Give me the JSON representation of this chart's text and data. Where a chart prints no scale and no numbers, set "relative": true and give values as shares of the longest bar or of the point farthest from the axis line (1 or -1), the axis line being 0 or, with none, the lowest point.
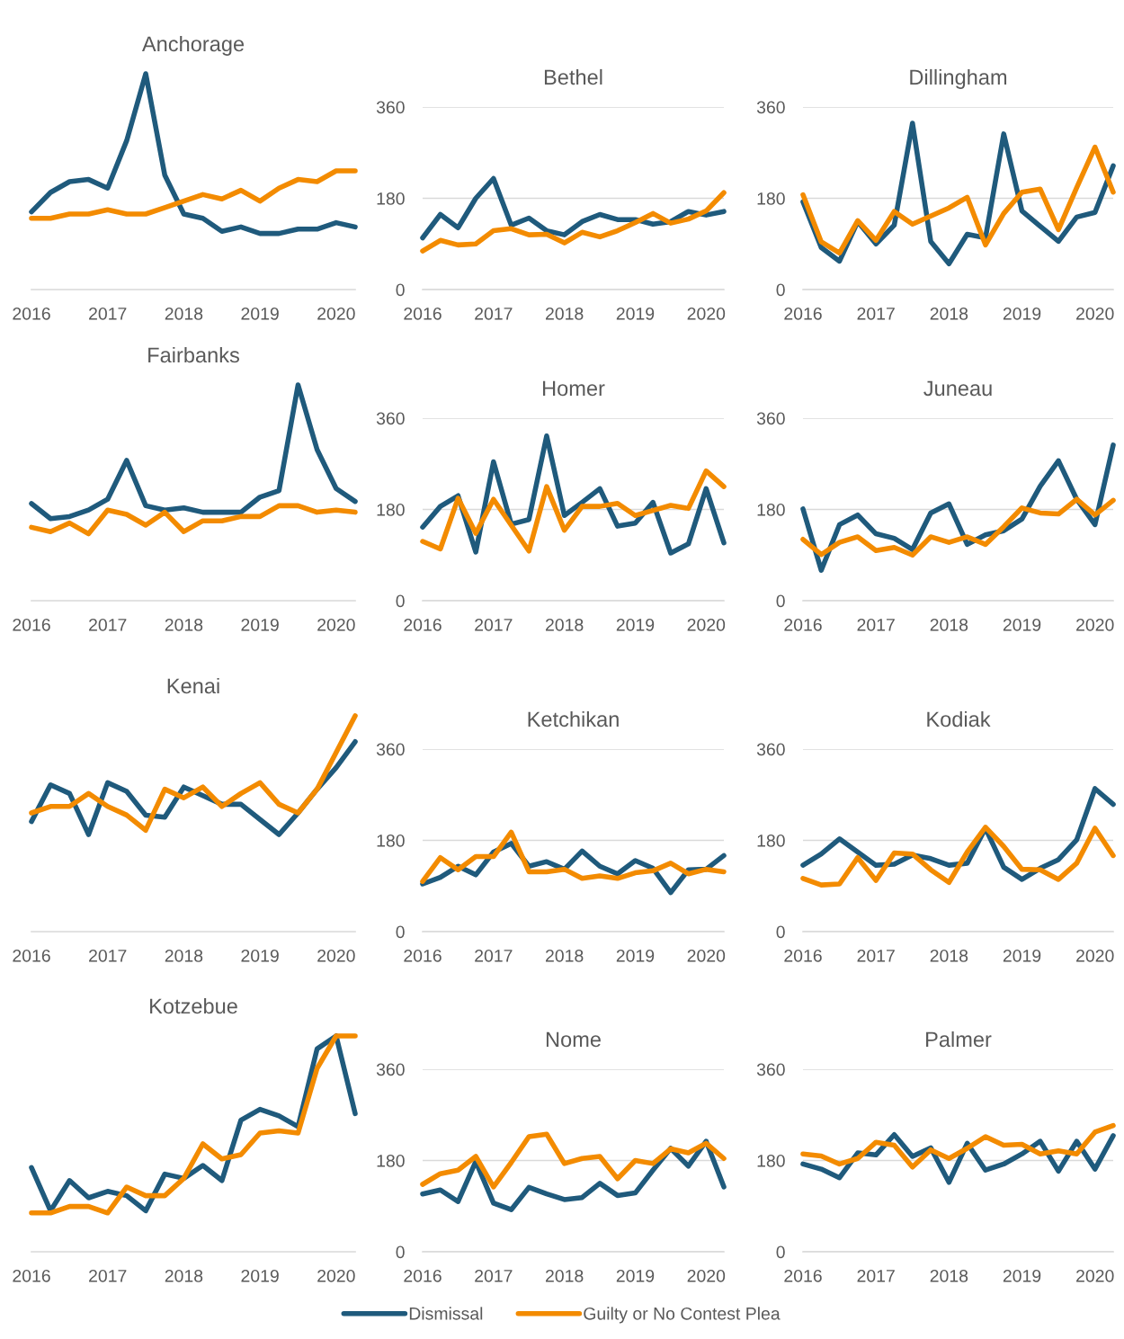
{
  "chart_data": [
    {
      "type": "line",
      "title": "Anchorage",
      "relative": true,
      "x": [
        2016,
        2016.25,
        2016.5,
        2016.75,
        2017,
        2017.25,
        2017.5,
        2017.75,
        2018,
        2018.25,
        2018.5,
        2018.75,
        2019,
        2019.25,
        2019.5,
        2019.75,
        2020,
        2020.25
      ],
      "xlim": [
        2016,
        2020.25
      ],
      "xticks": [
        2016,
        2017,
        2018,
        2019,
        2020
      ],
      "series": [
        {
          "color": "#1f5a7c",
          "values": [
            0.36,
            0.45,
            0.5,
            0.51,
            0.47,
            0.69,
            1,
            0.53,
            0.35,
            0.33,
            0.27,
            0.29,
            0.26,
            0.26,
            0.28,
            0.28,
            0.31,
            0.29
          ]
        },
        {
          "color": "#f38b00",
          "values": [
            0.33,
            0.33,
            0.35,
            0.35,
            0.37,
            0.35,
            0.35,
            0.38,
            0.41,
            0.44,
            0.42,
            0.46,
            0.41,
            0.47,
            0.51,
            0.5,
            0.55,
            0.55
          ]
        }
      ]
    },
    {
      "type": "line",
      "title": "Bethel",
      "x": [
        2016,
        2016.25,
        2016.5,
        2016.75,
        2017,
        2017.25,
        2017.5,
        2017.75,
        2018,
        2018.25,
        2018.5,
        2018.75,
        2019,
        2019.25,
        2019.5,
        2019.75,
        2020,
        2020.25
      ],
      "xlim": [
        2016,
        2020.25
      ],
      "xticks": [
        2016,
        2017,
        2018,
        2019,
        2020
      ],
      "ylim": [
        0,
        360
      ],
      "yticks": [
        0,
        180,
        360
      ],
      "grid": "y",
      "series": [
        {
          "color": "#1f5a7c",
          "values": [
            102,
            148,
            122,
            180,
            219,
            127,
            141,
            116,
            108,
            134,
            148,
            138,
            138,
            129,
            134,
            154,
            147,
            154
          ]
        },
        {
          "color": "#f38b00",
          "values": [
            76,
            97,
            88,
            90,
            116,
            120,
            108,
            109,
            92,
            113,
            104,
            116,
            132,
            150,
            131,
            139,
            155,
            191
          ]
        }
      ]
    },
    {
      "type": "line",
      "title": "Dillingham",
      "x": [
        2016,
        2016.25,
        2016.5,
        2016.75,
        2017,
        2017.25,
        2017.5,
        2017.75,
        2018,
        2018.25,
        2018.5,
        2018.75,
        2019,
        2019.25,
        2019.5,
        2019.75,
        2020,
        2020.25
      ],
      "xlim": [
        2016,
        2020.25
      ],
      "xticks": [
        2016,
        2017,
        2018,
        2019,
        2020
      ],
      "ylim": [
        0,
        360
      ],
      "yticks": [
        0,
        180,
        360
      ],
      "grid": "y",
      "series": [
        {
          "color": "#1f5a7c",
          "values": [
            173,
            83,
            56,
            134,
            90,
            127,
            328,
            95,
            51,
            109,
            102,
            307,
            155,
            125,
            95,
            143,
            152,
            244
          ]
        },
        {
          "color": "#f38b00",
          "values": [
            187,
            94,
            72,
            136,
            97,
            154,
            129,
            145,
            161,
            182,
            88,
            150,
            192,
            198,
            118,
            201,
            281,
            192
          ]
        }
      ]
    },
    {
      "type": "line",
      "title": "Fairbanks",
      "relative": true,
      "x": [
        2016,
        2016.25,
        2016.5,
        2016.75,
        2017,
        2017.25,
        2017.5,
        2017.75,
        2018,
        2018.25,
        2018.5,
        2018.75,
        2019,
        2019.25,
        2019.5,
        2019.75,
        2020,
        2020.25
      ],
      "xlim": [
        2016,
        2020.25
      ],
      "xticks": [
        2016,
        2017,
        2018,
        2019,
        2020
      ],
      "series": [
        {
          "color": "#1f5a7c",
          "values": [
            0.45,
            0.38,
            0.39,
            0.42,
            0.47,
            0.65,
            0.44,
            0.42,
            0.43,
            0.41,
            0.41,
            0.41,
            0.48,
            0.51,
            1,
            0.7,
            0.52,
            0.46
          ]
        },
        {
          "color": "#f38b00",
          "values": [
            0.34,
            0.32,
            0.36,
            0.31,
            0.42,
            0.4,
            0.35,
            0.41,
            0.32,
            0.37,
            0.37,
            0.39,
            0.39,
            0.44,
            0.44,
            0.41,
            0.42,
            0.41
          ]
        }
      ]
    },
    {
      "type": "line",
      "title": "Homer",
      "x": [
        2016,
        2016.25,
        2016.5,
        2016.75,
        2017,
        2017.25,
        2017.5,
        2017.75,
        2018,
        2018.25,
        2018.5,
        2018.75,
        2019,
        2019.25,
        2019.5,
        2019.75,
        2020,
        2020.25
      ],
      "xlim": [
        2016,
        2020.25
      ],
      "xticks": [
        2016,
        2017,
        2018,
        2019,
        2020
      ],
      "ylim": [
        0,
        360
      ],
      "yticks": [
        0,
        180,
        360
      ],
      "grid": "y",
      "series": [
        {
          "color": "#1f5a7c",
          "values": [
            145,
            186,
            207,
            96,
            274,
            151,
            160,
            325,
            168,
            194,
            221,
            147,
            153,
            194,
            94,
            112,
            221,
            114
          ]
        },
        {
          "color": "#f38b00",
          "values": [
            117,
            102,
            202,
            133,
            200,
            149,
            98,
            225,
            139,
            186,
            186,
            192,
            168,
            178,
            188,
            182,
            256,
            225
          ]
        }
      ]
    },
    {
      "type": "line",
      "title": "Juneau",
      "x": [
        2016,
        2016.25,
        2016.5,
        2016.75,
        2017,
        2017.25,
        2017.5,
        2017.75,
        2018,
        2018.25,
        2018.5,
        2018.75,
        2019,
        2019.25,
        2019.5,
        2019.75,
        2020,
        2020.25
      ],
      "xlim": [
        2016,
        2020.25
      ],
      "xticks": [
        2016,
        2017,
        2018,
        2019,
        2020
      ],
      "ylim": [
        0,
        360
      ],
      "yticks": [
        0,
        180,
        360
      ],
      "grid": "y",
      "series": [
        {
          "color": "#1f5a7c",
          "values": [
            181,
            60,
            150,
            169,
            132,
            123,
            101,
            173,
            191,
            111,
            130,
            138,
            161,
            226,
            276,
            200,
            150,
            307
          ]
        },
        {
          "color": "#f38b00",
          "values": [
            121,
            91,
            115,
            126,
            99,
            105,
            90,
            126,
            115,
            126,
            111,
            146,
            183,
            173,
            171,
            200,
            169,
            198
          ]
        }
      ]
    },
    {
      "type": "line",
      "title": "Kenai",
      "relative": true,
      "x": [
        2016,
        2016.25,
        2016.5,
        2016.75,
        2017,
        2017.25,
        2017.5,
        2017.75,
        2018,
        2018.25,
        2018.5,
        2018.75,
        2019,
        2019.25,
        2019.5,
        2019.75,
        2020,
        2020.25
      ],
      "xlim": [
        2016,
        2020.25
      ],
      "xticks": [
        2016,
        2017,
        2018,
        2019,
        2020
      ],
      "series": [
        {
          "color": "#1f5a7c",
          "values": [
            0.51,
            0.68,
            0.64,
            0.45,
            0.69,
            0.65,
            0.54,
            0.53,
            0.67,
            0.63,
            0.59,
            0.59,
            0.52,
            0.45,
            0.55,
            0.66,
            0.76,
            0.88
          ]
        },
        {
          "color": "#f38b00",
          "values": [
            0.55,
            0.58,
            0.58,
            0.64,
            0.58,
            0.54,
            0.47,
            0.66,
            0.62,
            0.67,
            0.58,
            0.64,
            0.69,
            0.59,
            0.55,
            0.66,
            0.83,
            1
          ]
        }
      ]
    },
    {
      "type": "line",
      "title": "Ketchikan",
      "x": [
        2016,
        2016.25,
        2016.5,
        2016.75,
        2017,
        2017.25,
        2017.5,
        2017.75,
        2018,
        2018.25,
        2018.5,
        2018.75,
        2019,
        2019.25,
        2019.5,
        2019.75,
        2020,
        2020.25
      ],
      "xlim": [
        2016,
        2020.25
      ],
      "xticks": [
        2016,
        2017,
        2018,
        2019,
        2020
      ],
      "ylim": [
        0,
        360
      ],
      "yticks": [
        0,
        180,
        360
      ],
      "grid": "y",
      "series": [
        {
          "color": "#1f5a7c",
          "values": [
            94,
            107,
            129,
            112,
            157,
            174,
            129,
            138,
            123,
            159,
            129,
            114,
            140,
            125,
            77,
            122,
            123,
            150
          ]
        },
        {
          "color": "#f38b00",
          "values": [
            99,
            146,
            122,
            148,
            148,
            196,
            118,
            118,
            123,
            105,
            110,
            105,
            116,
            120,
            135,
            114,
            123,
            118
          ]
        }
      ]
    },
    {
      "type": "line",
      "title": "Kodiak",
      "x": [
        2016,
        2016.25,
        2016.5,
        2016.75,
        2017,
        2017.25,
        2017.5,
        2017.75,
        2018,
        2018.25,
        2018.5,
        2018.75,
        2019,
        2019.25,
        2019.5,
        2019.75,
        2020,
        2020.25
      ],
      "xlim": [
        2016,
        2020.25
      ],
      "xticks": [
        2016,
        2017,
        2018,
        2019,
        2020
      ],
      "ylim": [
        0,
        360
      ],
      "yticks": [
        0,
        180,
        360
      ],
      "grid": "y",
      "series": [
        {
          "color": "#1f5a7c",
          "values": [
            131,
            153,
            183,
            157,
            131,
            133,
            151,
            144,
            131,
            135,
            204,
            127,
            103,
            125,
            142,
            181,
            282,
            251
          ]
        },
        {
          "color": "#f38b00",
          "values": [
            105,
            92,
            94,
            146,
            101,
            155,
            153,
            122,
            97,
            157,
            206,
            168,
            123,
            122,
            103,
            135,
            204,
            150
          ]
        }
      ]
    },
    {
      "type": "line",
      "title": "Kotzebue",
      "relative": true,
      "x": [
        2016,
        2016.25,
        2016.5,
        2016.75,
        2017,
        2017.25,
        2017.5,
        2017.75,
        2018,
        2018.25,
        2018.5,
        2018.75,
        2019,
        2019.25,
        2019.5,
        2019.75,
        2020,
        2020.25
      ],
      "xlim": [
        2016,
        2020.25
      ],
      "xticks": [
        2016,
        2017,
        2018,
        2019,
        2020
      ],
      "series": [
        {
          "color": "#1f5a7c",
          "values": [
            0.39,
            0.19,
            0.33,
            0.25,
            0.28,
            0.26,
            0.19,
            0.36,
            0.34,
            0.4,
            0.33,
            0.61,
            0.66,
            0.63,
            0.58,
            0.94,
            1,
            0.64
          ]
        },
        {
          "color": "#f38b00",
          "values": [
            0.18,
            0.18,
            0.21,
            0.21,
            0.18,
            0.3,
            0.26,
            0.26,
            0.34,
            0.5,
            0.43,
            0.45,
            0.55,
            0.56,
            0.55,
            0.85,
            1,
            1
          ]
        }
      ]
    },
    {
      "type": "line",
      "title": "Nome",
      "x": [
        2016,
        2016.25,
        2016.5,
        2016.75,
        2017,
        2017.25,
        2017.5,
        2017.75,
        2018,
        2018.25,
        2018.5,
        2018.75,
        2019,
        2019.25,
        2019.5,
        2019.75,
        2020,
        2020.25
      ],
      "xlim": [
        2016,
        2020.25
      ],
      "xticks": [
        2016,
        2017,
        2018,
        2019,
        2020
      ],
      "ylim": [
        0,
        360
      ],
      "yticks": [
        0,
        180,
        360
      ],
      "grid": "y",
      "legend": "bottom",
      "series": [
        {
          "name": "Dismissal",
          "color": "#1f5a7c",
          "values": [
            114,
            122,
            99,
            178,
            96,
            83,
            127,
            114,
            103,
            107,
            135,
            111,
            116,
            161,
            204,
            169,
            218,
            128
          ]
        },
        {
          "name": "Guilty or No Contest Plea",
          "color": "#f38b00",
          "values": [
            133,
            154,
            161,
            188,
            128,
            176,
            227,
            232,
            174,
            184,
            188,
            144,
            180,
            174,
            203,
            195,
            214,
            184
          ]
        }
      ]
    },
    {
      "type": "line",
      "title": "Palmer",
      "x": [
        2016,
        2016.25,
        2016.5,
        2016.75,
        2017,
        2017.25,
        2017.5,
        2017.75,
        2018,
        2018.25,
        2018.5,
        2018.75,
        2019,
        2019.25,
        2019.5,
        2019.75,
        2020,
        2020.25
      ],
      "xlim": [
        2016,
        2020.25
      ],
      "xticks": [
        2016,
        2017,
        2018,
        2019,
        2020
      ],
      "ylim": [
        0,
        360
      ],
      "yticks": [
        0,
        180,
        360
      ],
      "grid": "y",
      "series": [
        {
          "color": "#1f5a7c",
          "values": [
            173,
            163,
            146,
            195,
            191,
            231,
            188,
            205,
            137,
            214,
            161,
            173,
            193,
            218,
            159,
            218,
            163,
            229
          ]
        },
        {
          "color": "#f38b00",
          "values": [
            193,
            189,
            173,
            184,
            216,
            210,
            167,
            201,
            184,
            204,
            227,
            210,
            212,
            193,
            199,
            193,
            236,
            249
          ]
        }
      ]
    }
  ]
}
